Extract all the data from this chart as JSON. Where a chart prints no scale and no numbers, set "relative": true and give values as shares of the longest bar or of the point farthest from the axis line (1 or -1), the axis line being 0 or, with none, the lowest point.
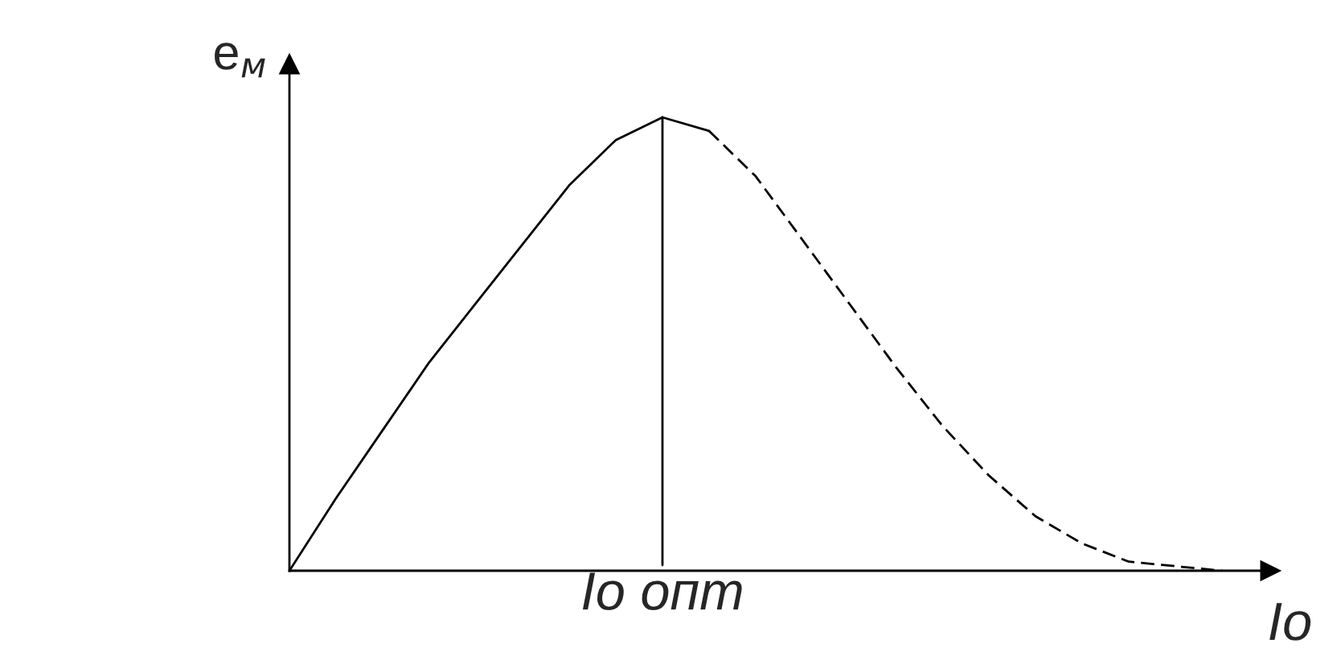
{
  "chart_data": {
    "type": "line",
    "relative": true,
    "xlabel": "Io",
    "ylabel": "e$_{м}$",
    "categories": [
      null,
      null,
      null,
      null,
      null,
      null,
      null,
      null,
      null,
      null,
      null,
      null,
      null,
      null,
      null,
      null,
      null,
      null,
      null,
      null,
      null
    ],
    "series": [
      {
        "color": "#000000",
        "line_style": "solid",
        "values": [
          0,
          0.16,
          0.31,
          0.46,
          0.59,
          0.72,
          0.85,
          0.95,
          1.0,
          0.97,
          null,
          null,
          null,
          null,
          null,
          null,
          null,
          null,
          null,
          null,
          null
        ]
      },
      {
        "color": "#000000",
        "line_style": "dashed",
        "values": [
          null,
          null,
          null,
          null,
          null,
          null,
          null,
          null,
          null,
          0.97,
          0.87,
          0.73,
          0.59,
          0.45,
          0.32,
          0.21,
          0.12,
          0.06,
          0.02,
          0.01,
          0
        ]
      }
    ],
    "annotations": [
      {
        "text": "Io опт",
        "y": 1.0
      }
    ],
    "legend": false,
    "marker": "none"
  }
}
